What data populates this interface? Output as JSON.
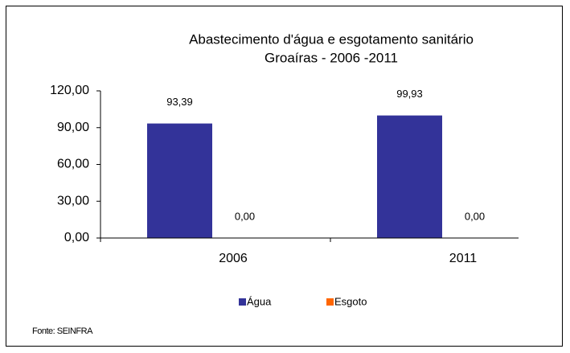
{
  "chart_data": {
    "type": "bar",
    "title": [
      "Abastecimento d'água e esgotamento sanitário",
      "Groaíras - 2006 -2011"
    ],
    "categories": [
      "2006",
      "2011"
    ],
    "series": [
      {
        "name": "Água",
        "color": "#333399",
        "values": [
          93.39,
          99.93
        ],
        "value_labels": [
          "93,39",
          "99,93"
        ]
      },
      {
        "name": "Esgoto",
        "color": "#ff6600",
        "values": [
          0,
          0
        ],
        "value_labels": [
          "0,00",
          "0,00"
        ]
      }
    ],
    "ylim": [
      0,
      120
    ],
    "yticks": [
      {
        "value": 0,
        "label": "0,00"
      },
      {
        "value": 30,
        "label": "30,00"
      },
      {
        "value": 60,
        "label": "60,00"
      },
      {
        "value": 90,
        "label": "90,00"
      },
      {
        "value": 120,
        "label": "120,00"
      }
    ],
    "legend": "bottom",
    "source": "Fonte: SEINFRA"
  }
}
